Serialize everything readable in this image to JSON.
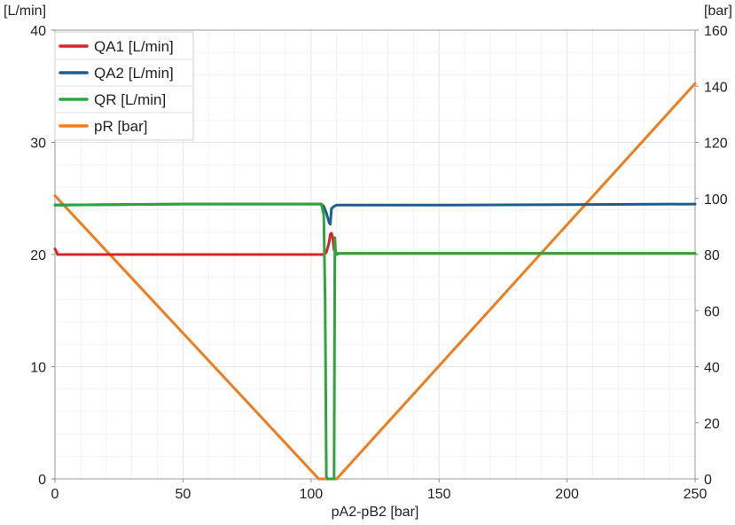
{
  "chart_data": {
    "type": "line",
    "xlabel": "pA2-pB2 [bar]",
    "ylabel_left": "[L/min]",
    "ylabel_right": "[bar]",
    "xlim": [
      0,
      250
    ],
    "ylim_left": [
      0,
      40
    ],
    "ylim_right": [
      0,
      160
    ],
    "x_ticks": [
      "0",
      "50",
      "100",
      "150",
      "200",
      "250"
    ],
    "y_left_ticks": [
      "0",
      "10",
      "20",
      "30",
      "40"
    ],
    "y_right_ticks": [
      "0",
      "20",
      "40",
      "60",
      "80",
      "100",
      "120",
      "140",
      "160"
    ],
    "grid": true,
    "legend_position": "top-left",
    "legend": [
      "QA1 [L/min]",
      "QA2 [L/min]",
      "QR [L/min]",
      "pR [bar]"
    ],
    "series": [
      {
        "name": "QA1 [L/min]",
        "axis": "left",
        "color": "#d7262b",
        "x": [
          0,
          0.5,
          1,
          2,
          50,
          100,
          105,
          106,
          107,
          107.5,
          108,
          108.5,
          109,
          110,
          150,
          200,
          250
        ],
        "y": [
          20.5,
          20.3,
          20.0,
          20.0,
          20.0,
          20.0,
          20.0,
          20.2,
          21.0,
          21.8,
          21.9,
          21.5,
          20.4,
          20.1,
          20.1,
          20.1,
          20.1
        ]
      },
      {
        "name": "QA2 [L/min]",
        "axis": "left",
        "color": "#1f5e8c",
        "x": [
          0,
          50,
          100,
          104,
          105,
          106,
          107,
          107.5,
          108,
          109,
          110,
          150,
          200,
          250
        ],
        "y": [
          24.4,
          24.5,
          24.5,
          24.5,
          24.3,
          23.7,
          22.9,
          22.7,
          24.1,
          24.3,
          24.4,
          24.4,
          24.45,
          24.5
        ]
      },
      {
        "name": "QR [L/min]",
        "axis": "left",
        "color": "#2fa33c",
        "x": [
          0,
          50,
          100,
          104,
          105,
          105.5,
          106,
          106.5,
          107,
          108,
          109,
          109.3,
          109.6,
          110,
          111,
          150,
          200,
          250
        ],
        "y": [
          24.4,
          24.5,
          24.5,
          24.5,
          23.5,
          16,
          0.2,
          0,
          0,
          0,
          0,
          21.5,
          20.3,
          20.0,
          20.1,
          20.1,
          20.1,
          20.1
        ]
      },
      {
        "name": "pR [bar]",
        "axis": "right",
        "color": "#ef7d1f",
        "x": [
          0,
          103,
          110,
          250
        ],
        "y": [
          101,
          0,
          0,
          141
        ]
      }
    ]
  }
}
